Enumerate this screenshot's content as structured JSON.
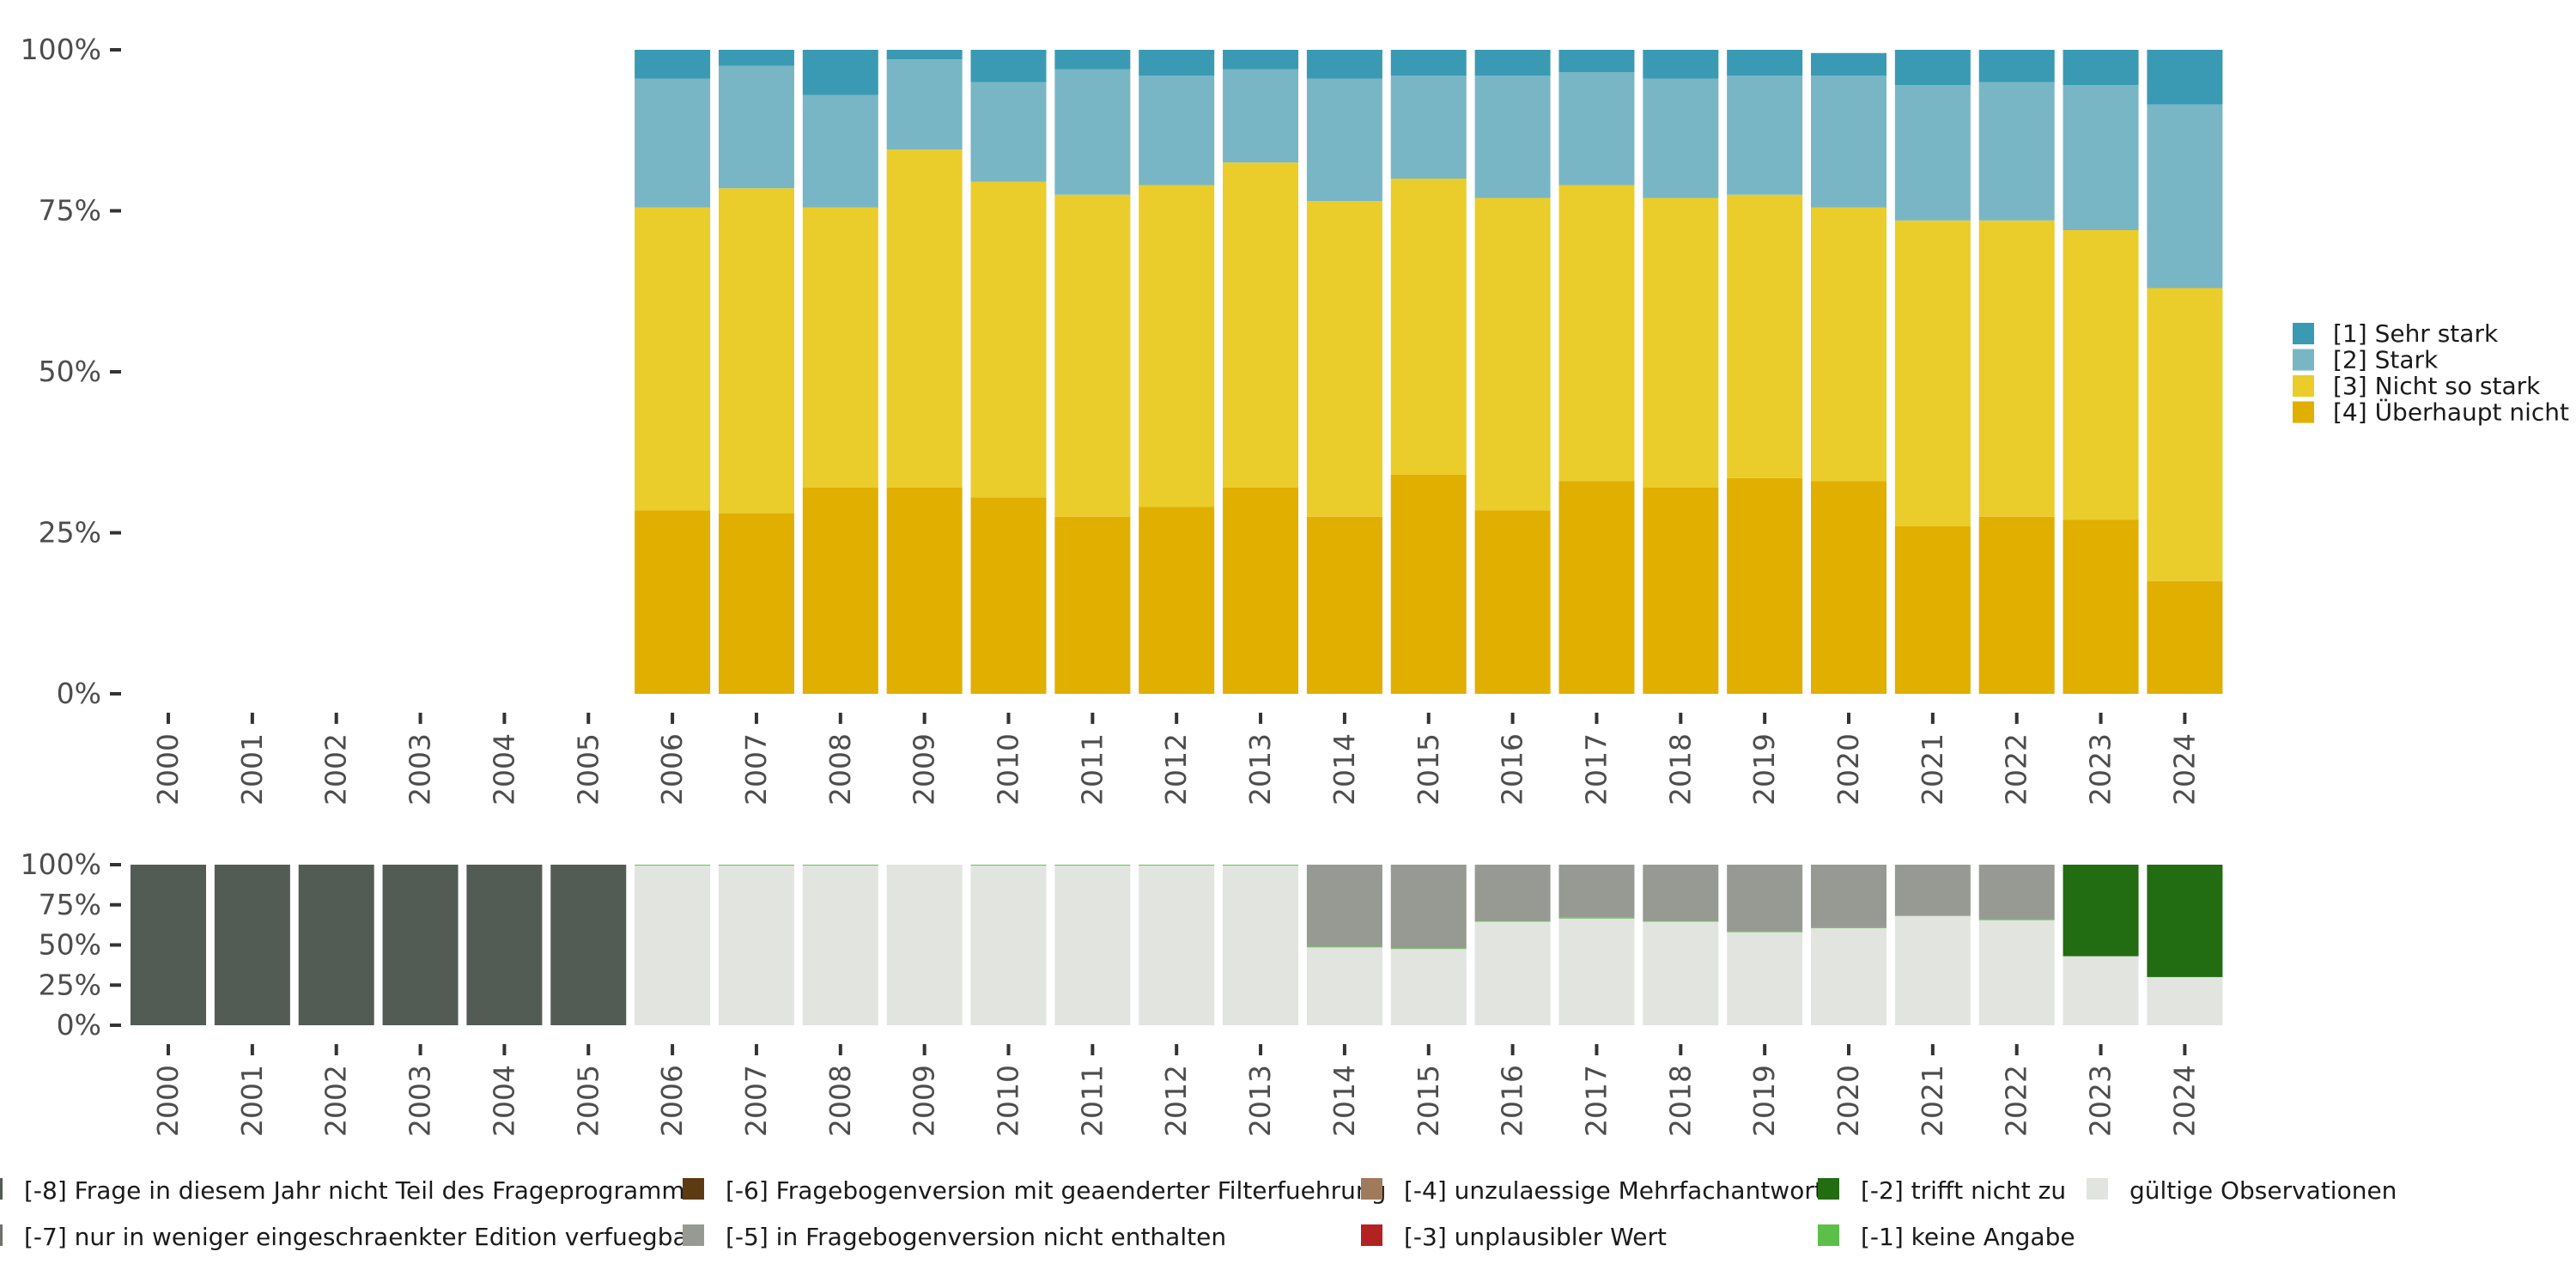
{
  "chart_data": [
    {
      "type": "bar",
      "stacked": true,
      "percent": true,
      "categories": [
        "2000",
        "2001",
        "2002",
        "2003",
        "2004",
        "2005",
        "2006",
        "2007",
        "2008",
        "2009",
        "2010",
        "2011",
        "2012",
        "2013",
        "2014",
        "2015",
        "2016",
        "2017",
        "2018",
        "2019",
        "2020",
        "2021",
        "2022",
        "2023",
        "2024"
      ],
      "yticks": [
        "0%",
        "25%",
        "50%",
        "75%",
        "100%"
      ],
      "ylim": [
        0,
        100
      ],
      "legend_position": "right",
      "series": [
        {
          "name": "[4] Überhaupt nicht",
          "color": "#E0AF00",
          "values": [
            null,
            null,
            null,
            null,
            null,
            null,
            28.5,
            28,
            32,
            32,
            30.5,
            27.5,
            29,
            32,
            27.5,
            34,
            28.5,
            33,
            32,
            33.5,
            33,
            26,
            27.5,
            27,
            17.5
          ]
        },
        {
          "name": "[3] Nicht so stark",
          "color": "#EACC2B",
          "values": [
            null,
            null,
            null,
            null,
            null,
            null,
            47,
            50.5,
            43.5,
            52.5,
            49,
            50,
            50,
            50.5,
            49,
            46,
            48.5,
            46,
            45,
            44,
            42.5,
            47.5,
            46,
            45,
            45.5
          ]
        },
        {
          "name": "[2] Stark",
          "color": "#78B6C5",
          "values": [
            null,
            null,
            null,
            null,
            null,
            null,
            20,
            19,
            17.5,
            14,
            15.5,
            19.5,
            17,
            14.5,
            19,
            16,
            19,
            17.5,
            18.5,
            18.5,
            20.5,
            21,
            21.5,
            22.5,
            28.5
          ]
        },
        {
          "name": "[1] Sehr stark",
          "color": "#3A9AB3",
          "values": [
            null,
            null,
            null,
            null,
            null,
            null,
            4.5,
            2.5,
            7,
            1.5,
            5,
            3,
            4,
            3,
            4.5,
            4,
            4,
            3.5,
            4.5,
            4,
            3.5,
            5.5,
            5,
            5.5,
            8.5
          ]
        }
      ]
    },
    {
      "type": "bar",
      "stacked": true,
      "percent": true,
      "categories": [
        "2000",
        "2001",
        "2002",
        "2003",
        "2004",
        "2005",
        "2006",
        "2007",
        "2008",
        "2009",
        "2010",
        "2011",
        "2012",
        "2013",
        "2014",
        "2015",
        "2016",
        "2017",
        "2018",
        "2019",
        "2020",
        "2021",
        "2022",
        "2023",
        "2024"
      ],
      "yticks": [
        "0%",
        "25%",
        "50%",
        "75%",
        "100%"
      ],
      "ylim": [
        0,
        100
      ],
      "legend_position": "bottom",
      "series": [
        {
          "name": "gültige Observationen",
          "color": "#E1E4DF",
          "values": [
            0,
            0,
            0,
            0,
            0,
            0,
            99.5,
            99.5,
            99.5,
            100,
            99.5,
            99.5,
            99.5,
            99.5,
            48.5,
            47.5,
            64.5,
            66.5,
            64.5,
            58,
            60.5,
            68,
            65.5,
            43,
            30
          ]
        },
        {
          "name": "[-1] keine Angabe",
          "color": "#5BBF4A",
          "values": [
            0,
            0,
            0,
            0,
            0,
            0,
            0.5,
            0.5,
            0.5,
            0,
            0.5,
            0.5,
            0.5,
            0.5,
            0.5,
            0.5,
            0.5,
            0.5,
            0.5,
            0.5,
            0.5,
            0.3,
            0.5,
            0,
            0
          ]
        },
        {
          "name": "[-2] trifft nicht zu",
          "color": "#226C12",
          "values": [
            0,
            0,
            0,
            0,
            0,
            0,
            0,
            0,
            0,
            0,
            0,
            0,
            0,
            0,
            0,
            0,
            0,
            0,
            0,
            0,
            0,
            0,
            0,
            57,
            70
          ]
        },
        {
          "name": "[-3] unplausibler Wert",
          "color": "#B22222",
          "values": [
            0,
            0,
            0,
            0,
            0,
            0,
            0,
            0,
            0,
            0,
            0,
            0,
            0,
            0,
            0,
            0,
            0,
            0,
            0,
            0,
            0,
            0,
            0,
            0,
            0
          ]
        },
        {
          "name": "[-4] unzulaessige Mehrfachantwort",
          "color": "#A07A5C",
          "values": [
            0,
            0,
            0,
            0,
            0,
            0,
            0,
            0,
            0,
            0,
            0,
            0,
            0,
            0,
            0,
            0,
            0,
            0,
            0,
            0,
            0,
            0,
            0,
            0,
            0
          ]
        },
        {
          "name": "[-5] in Fragebogenversion nicht enthalten",
          "color": "#979A92",
          "values": [
            0,
            0,
            0,
            0,
            0,
            0,
            0,
            0,
            0,
            0,
            0,
            0,
            0,
            0,
            51,
            52,
            35,
            33,
            35,
            41.5,
            39,
            31.7,
            34,
            0,
            0
          ]
        },
        {
          "name": "[-6] Fragebogenversion mit geaenderter Filterfuehrung",
          "color": "#5E3A12",
          "values": [
            0,
            0,
            0,
            0,
            0,
            0,
            0,
            0,
            0,
            0,
            0,
            0,
            0,
            0,
            0,
            0,
            0,
            0,
            0,
            0,
            0,
            0,
            0,
            0,
            0
          ]
        },
        {
          "name": "[-7] nur in weniger eingeschraenkter Edition verfuegbar",
          "color": "#6E716C",
          "values": [
            0,
            0,
            0,
            0,
            0,
            0,
            0,
            0,
            0,
            0,
            0,
            0,
            0,
            0,
            0,
            0,
            0,
            0,
            0,
            0,
            0,
            0,
            0,
            0,
            0
          ]
        },
        {
          "name": "[-8] Frage in diesem Jahr nicht Teil des Frageprogramms",
          "color": "#535B55",
          "values": [
            100,
            100,
            100,
            100,
            100,
            100,
            0,
            0,
            0,
            0,
            0,
            0,
            0,
            0,
            0,
            0,
            0,
            0,
            0,
            0,
            0,
            0,
            0,
            0,
            0
          ]
        }
      ],
      "legend_order": [
        "[-8] Frage in diesem Jahr nicht Teil des Frageprogramms",
        "[-7] nur in weniger eingeschraenkter Edition verfuegbar",
        "[-6] Fragebogenversion mit geaenderter Filterfuehrung",
        "[-5] in Fragebogenversion nicht enthalten",
        "[-4] unzulaessige Mehrfachantwort",
        "[-3] unplausibler Wert",
        "[-2] trifft nicht zu",
        "[-1] keine Angabe",
        "gültige Observationen"
      ]
    }
  ]
}
